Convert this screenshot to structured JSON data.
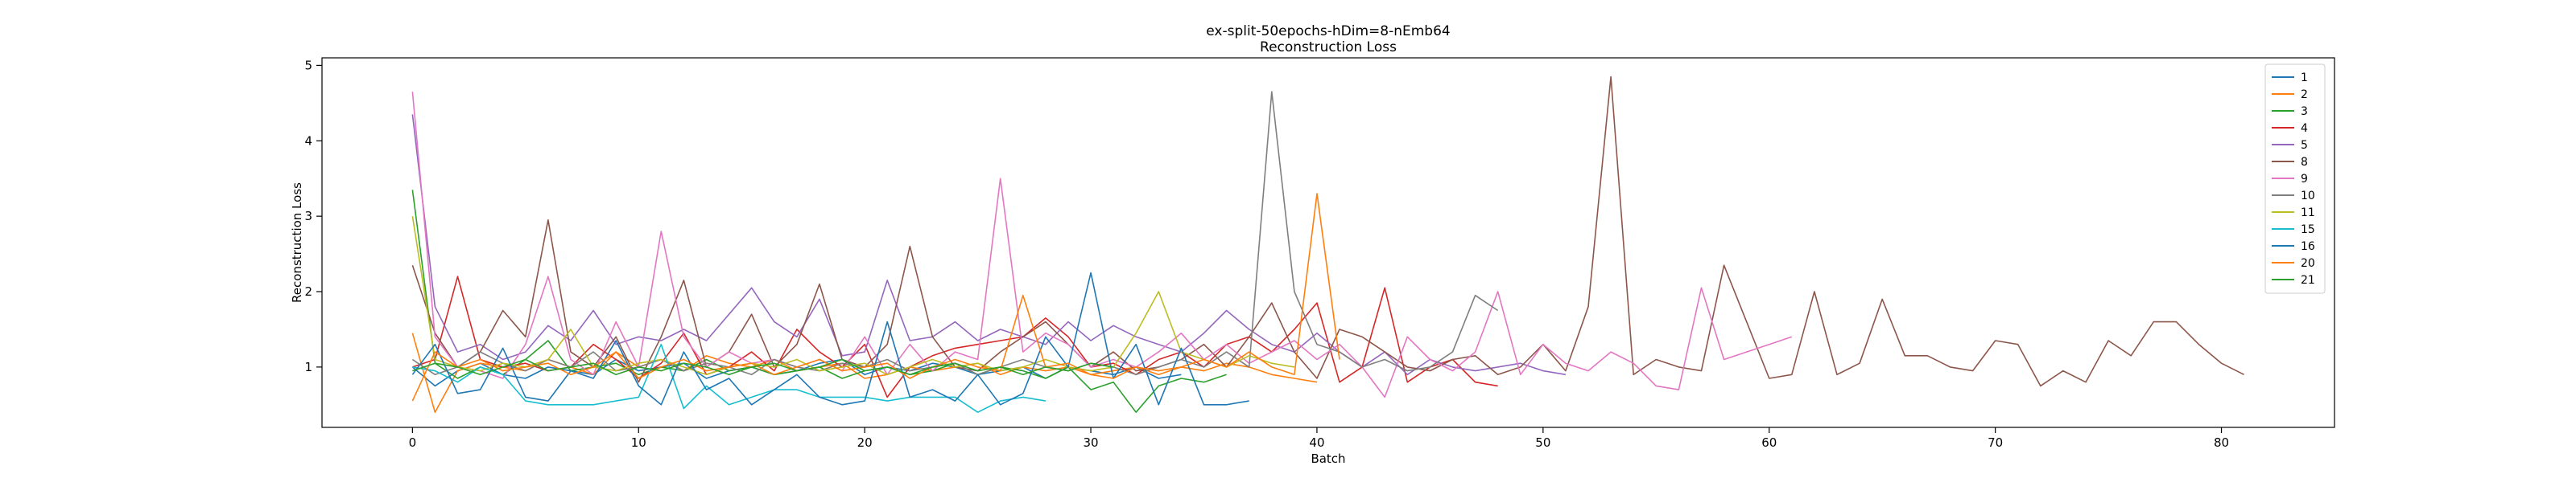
{
  "chart_data": {
    "type": "line",
    "title": "ex-split-50epochs-hDim=8-nEmb64",
    "subtitle": "Reconstruction Loss",
    "xlabel": "Batch",
    "ylabel": "Reconstruction Loss",
    "xlim": [
      -4,
      85
    ],
    "ylim": [
      0.2,
      5.1
    ],
    "xticks": [
      0,
      10,
      20,
      30,
      40,
      50,
      60,
      70,
      80
    ],
    "yticks": [
      1,
      2,
      3,
      4,
      5
    ],
    "grid": false,
    "legend_position": "top-right",
    "series": [
      {
        "name": "1",
        "color": "#1f77b4",
        "values": [
          1.0,
          0.75,
          0.95,
          1.05,
          0.9,
          0.85,
          1.0,
          0.95,
          0.9,
          1.1,
          0.95,
          1.0,
          1.05,
          0.85,
          0.95,
          1.0,
          0.9,
          0.95,
          1.05,
          1.1,
          0.9,
          1.0,
          0.95,
          1.05,
          1.0,
          0.9,
          0.95,
          1.0,
          0.85,
          1.0,
          0.95,
          0.9,
          1.0,
          0.85,
          0.9
        ]
      },
      {
        "name": "2",
        "color": "#ff7f0e",
        "values": [
          1.45,
          0.4,
          0.95,
          1.05,
          1.0,
          0.95,
          1.1,
          1.0,
          0.9,
          1.2,
          1.0,
          1.1,
          0.95,
          1.15,
          1.05,
          1.0,
          1.1,
          0.95,
          1.0,
          1.05,
          0.85,
          0.9,
          1.0,
          0.95,
          1.0,
          1.05,
          0.9,
          1.0,
          0.95,
          1.0,
          0.9,
          0.95,
          1.0,
          0.9,
          1.0,
          0.95,
          1.05,
          1.0,
          0.9,
          0.85,
          0.8
        ]
      },
      {
        "name": "3",
        "color": "#2ca02c",
        "values": [
          3.35,
          1.05,
          0.85,
          1.0,
          0.9,
          1.1,
          1.35,
          0.95,
          1.0,
          1.05,
          0.9,
          1.0,
          0.95,
          1.1,
          0.95,
          1.0,
          0.9,
          0.95,
          1.0,
          0.85,
          0.95,
          1.0,
          0.9,
          0.95,
          1.05,
          0.9,
          1.0,
          0.95,
          0.85,
          1.0,
          0.7,
          0.8,
          0.4,
          0.75,
          0.85,
          0.8,
          0.9
        ]
      },
      {
        "name": "4",
        "color": "#d62728",
        "values": [
          1.0,
          1.1,
          2.2,
          1.1,
          1.0,
          1.05,
          0.95,
          1.0,
          1.3,
          1.1,
          0.85,
          1.05,
          1.45,
          0.9,
          1.0,
          1.2,
          0.95,
          1.5,
          1.2,
          1.0,
          1.3,
          0.6,
          1.0,
          1.15,
          1.25,
          1.3,
          1.35,
          1.4,
          1.65,
          1.4,
          1.0,
          1.05,
          0.9,
          1.1,
          1.2,
          1.0,
          1.3,
          1.4,
          1.2,
          1.5,
          1.85,
          0.8,
          1.0,
          2.05,
          0.8,
          1.0,
          1.1,
          0.8,
          0.75
        ]
      },
      {
        "name": "5",
        "color": "#9467bd",
        "values": [
          4.35,
          1.8,
          1.2,
          1.3,
          1.1,
          1.2,
          1.55,
          1.35,
          1.75,
          1.3,
          1.4,
          1.35,
          1.5,
          1.35,
          1.7,
          2.05,
          1.6,
          1.4,
          1.9,
          1.15,
          1.2,
          2.15,
          1.35,
          1.4,
          1.6,
          1.35,
          1.5,
          1.4,
          1.3,
          1.6,
          1.35,
          1.55,
          1.4,
          1.3,
          1.2,
          1.45,
          1.75,
          1.5,
          1.3,
          1.2,
          1.45,
          1.2,
          1.0,
          1.2,
          0.9,
          1.1,
          1.0,
          0.95,
          1.0,
          1.05,
          0.95,
          0.9
        ]
      },
      {
        "name": "8",
        "color": "#8c564b",
        "values": [
          2.35,
          1.45,
          1.0,
          1.2,
          1.75,
          1.4,
          2.95,
          1.2,
          1.0,
          1.4,
          0.8,
          1.4,
          2.15,
          1.0,
          1.2,
          1.7,
          1.0,
          1.3,
          2.1,
          1.1,
          1.0,
          1.3,
          2.6,
          1.4,
          1.0,
          0.95,
          1.2,
          1.4,
          1.6,
          1.3,
          1.0,
          1.2,
          0.95,
          1.0,
          1.1,
          1.3,
          1.0,
          1.4,
          1.85,
          1.2,
          0.85,
          1.5,
          1.4,
          1.2,
          1.0,
          0.95,
          1.1,
          1.15,
          0.9,
          1.0,
          1.3,
          0.95,
          1.8,
          4.85,
          0.9,
          1.1,
          1.0,
          0.95,
          2.35,
          1.6,
          0.85,
          0.9,
          2.0,
          0.9,
          1.05,
          1.9,
          1.15,
          1.15,
          1.0,
          0.95,
          1.35,
          1.3,
          0.75,
          0.95,
          0.8,
          1.35,
          1.15,
          1.6,
          1.6,
          1.3,
          1.05,
          0.9
        ]
      },
      {
        "name": "9",
        "color": "#e377c2",
        "values": [
          4.65,
          1.4,
          1.0,
          0.95,
          0.85,
          1.3,
          2.2,
          1.1,
          0.9,
          1.6,
          1.0,
          2.8,
          1.4,
          1.0,
          1.2,
          1.05,
          1.1,
          1.0,
          1.1,
          0.95,
          1.4,
          0.9,
          1.3,
          0.95,
          1.2,
          1.1,
          3.5,
          1.2,
          1.45,
          1.3,
          1.0,
          1.1,
          1.0,
          1.2,
          1.45,
          1.1,
          1.3,
          1.05,
          1.2,
          1.35,
          1.1,
          1.3,
          1.0,
          0.6,
          1.4,
          1.1,
          0.95,
          1.2,
          2.0,
          0.9,
          1.3,
          1.05,
          0.95,
          1.2,
          1.05,
          0.75,
          0.7,
          2.05,
          1.1,
          1.2,
          1.3,
          1.4
        ]
      },
      {
        "name": "10",
        "color": "#7f7f7f",
        "values": [
          1.1,
          0.9,
          1.0,
          1.2,
          1.05,
          0.95,
          1.1,
          1.0,
          1.2,
          0.95,
          1.0,
          1.1,
          0.95,
          1.05,
          1.0,
          0.9,
          1.1,
          1.0,
          0.95,
          1.05,
          1.0,
          1.1,
          0.95,
          1.0,
          1.05,
          0.9,
          1.0,
          1.1,
          1.0,
          0.95,
          1.05,
          1.0,
          0.9,
          1.0,
          1.1,
          1.0,
          1.2,
          1.0,
          4.65,
          2.0,
          1.3,
          1.2,
          1.0,
          1.1,
          0.95,
          1.0,
          1.2,
          1.95,
          1.75
        ]
      },
      {
        "name": "11",
        "color": "#bcbd22",
        "values": [
          3.0,
          1.1,
          1.0,
          0.95,
          1.05,
          1.0,
          1.1,
          1.5,
          1.0,
          0.95,
          1.05,
          1.1,
          1.0,
          0.9,
          1.0,
          1.05,
          1.0,
          1.1,
          0.95,
          1.0,
          1.05,
          0.9,
          1.0,
          1.1,
          1.0,
          1.05,
          0.95,
          1.0,
          1.1,
          1.0,
          0.95,
          1.0,
          1.45,
          2.0,
          1.2,
          1.1,
          1.0,
          1.15,
          1.05,
          1.0
        ]
      },
      {
        "name": "15",
        "color": "#17becf",
        "values": [
          1.0,
          0.95,
          0.8,
          1.0,
          0.9,
          0.55,
          0.5,
          0.5,
          0.5,
          0.55,
          0.6,
          1.3,
          0.45,
          0.75,
          0.5,
          0.6,
          0.7,
          0.7,
          0.6,
          0.6,
          0.6,
          0.55,
          0.6,
          0.6,
          0.6,
          0.4,
          0.55,
          0.6,
          0.55
        ]
      },
      {
        "name": "16",
        "color": "#1f77b4",
        "values": [
          0.9,
          1.3,
          0.65,
          0.7,
          1.25,
          0.6,
          0.55,
          0.95,
          0.85,
          1.35,
          0.75,
          0.5,
          1.2,
          0.7,
          0.85,
          0.5,
          0.7,
          0.9,
          0.6,
          0.5,
          0.55,
          1.6,
          0.6,
          0.7,
          0.55,
          0.9,
          0.5,
          0.65,
          1.4,
          1.0,
          2.25,
          0.85,
          1.3,
          0.5,
          1.25,
          0.5,
          0.5,
          0.55
        ]
      },
      {
        "name": "20",
        "color": "#ff7f0e",
        "values": [
          0.55,
          1.2,
          1.0,
          1.1,
          0.95,
          1.0,
          1.05,
          0.9,
          1.0,
          1.2,
          0.85,
          1.0,
          1.1,
          0.95,
          1.0,
          1.05,
          0.9,
          1.0,
          1.1,
          0.95,
          1.0,
          1.05,
          0.85,
          1.0,
          1.1,
          1.0,
          0.95,
          1.95,
          1.0,
          1.05,
          0.9,
          0.85,
          1.0,
          0.95,
          1.0,
          1.1,
          1.0,
          1.2,
          1.0,
          0.9,
          3.3,
          1.1
        ]
      },
      {
        "name": "21",
        "color": "#2ca02c",
        "values": [
          0.95,
          1.05,
          1.0,
          0.9,
          1.0,
          1.1,
          0.95,
          1.0,
          1.05,
          0.9,
          1.0,
          0.95,
          1.05,
          1.0,
          0.9,
          1.0,
          1.05,
          0.95,
          1.0,
          1.1,
          0.95,
          1.0,
          0.9,
          1.0,
          1.05,
          0.95,
          1.0,
          0.9,
          1.0,
          0.95,
          1.05,
          1.0
        ]
      }
    ]
  }
}
